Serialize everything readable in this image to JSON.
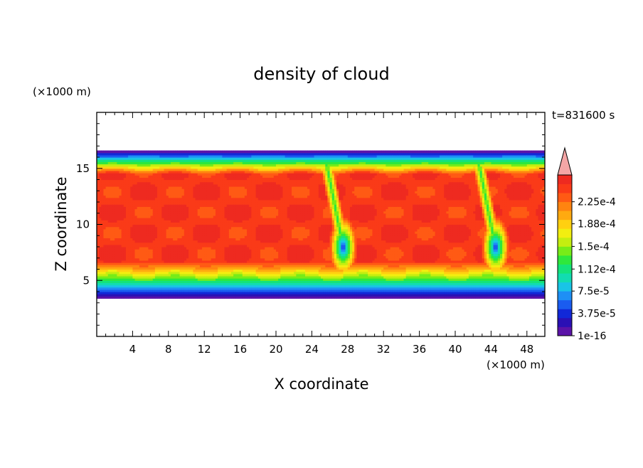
{
  "chart_data": {
    "type": "heatmap",
    "title": "density of cloud",
    "xlabel": "X coordinate",
    "ylabel": "Z coordinate",
    "x_unit": "(×1000 m)",
    "y_unit": "(×1000 m)",
    "time_label": "t=831600 s",
    "xlim": [
      0,
      50
    ],
    "ylim": [
      0,
      20
    ],
    "x_ticks": [
      "4",
      "8",
      "12",
      "16",
      "20",
      "24",
      "28",
      "32",
      "36",
      "40",
      "44",
      "48"
    ],
    "y_ticks": [
      "5",
      "10",
      "15"
    ],
    "colorbar": {
      "labels": [
        "1e-16",
        "3.75e-5",
        "7.5e-5",
        "1.12e-4",
        "1.5e-4",
        "1.88e-4",
        "2.25e-4"
      ],
      "levels": [
        1e-16,
        3.75e-05,
        7.5e-05,
        0.000112,
        0.00015,
        0.000188,
        0.000225
      ],
      "colors": [
        "#5b13a8",
        "#2a10b5",
        "#1128d8",
        "#1a5cf0",
        "#1e8ff5",
        "#19c4e6",
        "#12dcb0",
        "#14e37a",
        "#2ee83c",
        "#77ec18",
        "#c4ee10",
        "#f2ee10",
        "#ffd010",
        "#ffaa10",
        "#ff8410",
        "#ff5a14",
        "#fa3a18",
        "#ee2a20"
      ],
      "over_color": "#f4a6a6"
    },
    "field": {
      "cloud_base_km": 3.5,
      "cloud_top_km": 16.5,
      "peak_value": 0.00023,
      "features": [
        {
          "type": "downdraft",
          "x_km": 27.5,
          "z_km": 8.0
        },
        {
          "type": "downdraft",
          "x_km": 44.5,
          "z_km": 8.0
        }
      ]
    }
  }
}
